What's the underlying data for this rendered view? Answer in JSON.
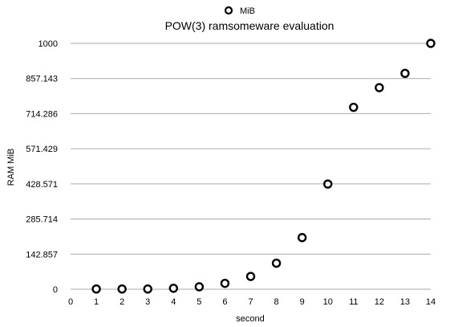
{
  "chart_data": {
    "type": "scatter",
    "title": "POW(3) ramsomeware evaluation",
    "xlabel": "second",
    "ylabel": "RAM MiB",
    "xlim": [
      0,
      14
    ],
    "ylim": [
      0,
      1000
    ],
    "x_ticks": [
      "0",
      "1",
      "2",
      "3",
      "4",
      "5",
      "6",
      "7",
      "8",
      "9",
      "10",
      "11",
      "12",
      "13",
      "14"
    ],
    "y_ticks": [
      "0",
      "142.857",
      "285.714",
      "428.571",
      "571.429",
      "714.286",
      "857.143",
      "1000"
    ],
    "grid": "horizontal",
    "legend_position": "top-center",
    "series": [
      {
        "name": "MiB",
        "color": "#000000",
        "marker": "open-circle",
        "x": [
          1,
          2,
          3,
          4,
          5,
          6,
          7,
          8,
          9,
          10,
          11,
          12,
          13,
          14
        ],
        "y": [
          1,
          1,
          1,
          4,
          10,
          24,
          52,
          106,
          210,
          428,
          740,
          820,
          878,
          1000
        ]
      }
    ]
  }
}
